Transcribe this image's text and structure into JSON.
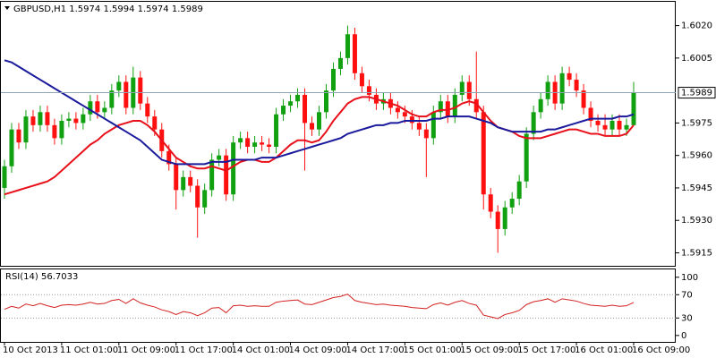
{
  "chart_data": [
    {
      "type": "candlestick",
      "title": "GBPUSD,H1",
      "categories": [
        "10 Oct 2013",
        null,
        null,
        null,
        null,
        null,
        null,
        null,
        "11 Oct 01:00",
        null,
        null,
        null,
        null,
        null,
        null,
        null,
        "11 Oct 09:00",
        null,
        null,
        null,
        null,
        null,
        null,
        null,
        "11 Oct 17:00",
        null,
        null,
        null,
        null,
        null,
        null,
        null,
        "14 Oct 01:00",
        null,
        null,
        null,
        null,
        null,
        null,
        null,
        "14 Oct 09:00",
        null,
        null,
        null,
        null,
        null,
        null,
        null,
        "14 Oct 17:00",
        null,
        null,
        null,
        null,
        null,
        null,
        null,
        "15 Oct 01:00",
        null,
        null,
        null,
        null,
        null,
        null,
        null,
        "15 Oct 09:00",
        null,
        null,
        null,
        null,
        null,
        null,
        null,
        "15 Oct 17:00",
        null,
        null,
        null,
        null,
        null,
        null,
        null,
        "16 Oct 01:00",
        null,
        null,
        null,
        null,
        null,
        null,
        null,
        "16 Oct 09:00"
      ],
      "open": [
        1.5945,
        1.5955,
        1.5972,
        1.5966,
        1.5978,
        1.5974,
        1.598,
        1.5974,
        1.5968,
        1.5976,
        1.5977,
        1.5975,
        1.5979,
        1.5985,
        1.598,
        1.5982,
        1.599,
        1.5994,
        1.5982,
        1.5996,
        1.5984,
        1.5978,
        1.5972,
        1.5962,
        1.5956,
        1.5944,
        1.595,
        1.5946,
        1.5936,
        1.5944,
        1.5958,
        1.596,
        1.5942,
        1.5966,
        1.5968,
        1.5964,
        1.5966,
        1.5965,
        1.5964,
        1.5979,
        1.5983,
        1.5985,
        1.5988,
        1.5975,
        1.5972,
        1.598,
        1.599,
        1.6,
        1.6005,
        1.6016,
        1.5998,
        1.5992,
        1.5988,
        1.5984,
        1.5986,
        1.5982,
        1.598,
        1.5978,
        1.5975,
        1.5972,
        1.5968,
        1.598,
        1.5985,
        1.5978,
        1.5988,
        1.5994,
        1.5986,
        1.598,
        1.5942,
        1.5934,
        1.5926,
        1.5936,
        1.594,
        1.5948,
        1.597,
        1.598,
        1.5986,
        1.5994,
        1.5984,
        1.5998,
        1.5995,
        1.599,
        1.5982,
        1.5976,
        1.5974,
        1.5972,
        1.5976,
        1.5972,
        1.5974
      ],
      "high": [
        1.5958,
        1.5975,
        1.5975,
        1.5981,
        1.5981,
        1.5983,
        1.5983,
        1.5977,
        1.5979,
        1.598,
        1.598,
        1.5982,
        1.5988,
        1.5988,
        1.5985,
        1.5993,
        1.5997,
        1.5997,
        1.6001,
        1.5999,
        1.5987,
        1.5981,
        1.5975,
        1.5965,
        1.5959,
        1.5953,
        1.5953,
        1.5949,
        1.5947,
        1.5961,
        1.5963,
        1.5963,
        1.5969,
        1.5971,
        1.5971,
        1.5969,
        1.5969,
        1.5968,
        1.5982,
        1.5986,
        1.5988,
        1.5991,
        1.5991,
        1.5978,
        1.5983,
        1.5993,
        1.6003,
        1.6008,
        1.602,
        1.6019,
        1.6001,
        1.5995,
        1.5991,
        1.5989,
        1.5989,
        1.5985,
        1.5983,
        1.5981,
        1.5978,
        1.5975,
        1.5983,
        1.5988,
        1.5988,
        1.5991,
        1.5997,
        1.5997,
        1.6008,
        1.5983,
        1.5945,
        1.5937,
        1.5939,
        1.5943,
        1.5951,
        1.5973,
        1.5983,
        1.5989,
        1.5997,
        1.5997,
        1.6001,
        1.6001,
        1.5998,
        1.5993,
        1.5985,
        1.5979,
        1.5979,
        1.5979,
        1.5979,
        1.5977,
        1.5994
      ],
      "low": [
        1.594,
        1.5952,
        1.5963,
        1.5963,
        1.5971,
        1.5971,
        1.5971,
        1.5965,
        1.5965,
        1.5973,
        1.5972,
        1.5972,
        1.5976,
        1.5977,
        1.5977,
        1.5979,
        1.5987,
        1.5979,
        1.5979,
        1.5981,
        1.5975,
        1.5969,
        1.5959,
        1.5953,
        1.5935,
        1.5941,
        1.5943,
        1.5922,
        1.5933,
        1.5941,
        1.5955,
        1.5939,
        1.5939,
        1.5963,
        1.5961,
        1.5961,
        1.5962,
        1.5961,
        1.5961,
        1.5976,
        1.598,
        1.5982,
        1.5953,
        1.5969,
        1.5969,
        1.5977,
        1.5987,
        1.5997,
        1.6002,
        1.5995,
        1.5989,
        1.5985,
        1.5981,
        1.5981,
        1.5979,
        1.5977,
        1.5975,
        1.5972,
        1.5969,
        1.595,
        1.5965,
        1.5977,
        1.5975,
        1.5975,
        1.5985,
        1.5983,
        1.5977,
        1.5935,
        1.5931,
        1.5915,
        1.5923,
        1.5933,
        1.5937,
        1.5945,
        1.5967,
        1.5977,
        1.5983,
        1.5981,
        1.5981,
        1.5992,
        1.5987,
        1.5979,
        1.5973,
        1.5971,
        1.5969,
        1.5969,
        1.5969,
        1.5969,
        1.5974
      ],
      "close": [
        1.5955,
        1.5972,
        1.5966,
        1.5978,
        1.5974,
        1.598,
        1.5974,
        1.5968,
        1.5976,
        1.5977,
        1.5975,
        1.5979,
        1.5985,
        1.598,
        1.5982,
        1.599,
        1.5994,
        1.5982,
        1.5996,
        1.5984,
        1.5978,
        1.5972,
        1.5962,
        1.5956,
        1.5944,
        1.595,
        1.5946,
        1.5936,
        1.5944,
        1.5958,
        1.596,
        1.5942,
        1.5966,
        1.5968,
        1.5964,
        1.5966,
        1.5965,
        1.5964,
        1.5979,
        1.5983,
        1.5985,
        1.5988,
        1.5975,
        1.5972,
        1.598,
        1.599,
        1.6,
        1.6005,
        1.6016,
        1.5998,
        1.5992,
        1.5988,
        1.5984,
        1.5986,
        1.5982,
        1.598,
        1.5978,
        1.5975,
        1.5972,
        1.5968,
        1.598,
        1.5985,
        1.5978,
        1.5988,
        1.5994,
        1.5986,
        1.598,
        1.5942,
        1.5934,
        1.5926,
        1.5936,
        1.594,
        1.5948,
        1.597,
        1.598,
        1.5986,
        1.5994,
        1.5984,
        1.5998,
        1.5995,
        1.599,
        1.5982,
        1.5976,
        1.5974,
        1.5972,
        1.5976,
        1.5972,
        1.5974,
        1.5989
      ],
      "up_color": "#10a010",
      "down_color": "#ff1010",
      "last_line_color": "#8fa5b5",
      "series": [
        {
          "color": "#e8101a",
          "values": [
            1.5942,
            1.5943,
            1.5944,
            1.5945,
            1.5946,
            1.5947,
            1.5948,
            1.595,
            1.5953,
            1.5956,
            1.5959,
            1.5962,
            1.5965,
            1.5967,
            1.597,
            1.5972,
            1.5974,
            1.5975,
            1.5976,
            1.5976,
            1.5974,
            1.5971,
            1.5967,
            1.5963,
            1.5959,
            1.5957,
            1.5955,
            1.5954,
            1.5954,
            1.5955,
            1.5954,
            1.5953,
            1.5955,
            1.5957,
            1.5958,
            1.5958,
            1.5957,
            1.5957,
            1.5959,
            1.5962,
            1.5965,
            1.5967,
            1.5967,
            1.5966,
            1.5967,
            1.5971,
            1.5976,
            1.598,
            1.5984,
            1.5986,
            1.5987,
            1.5987,
            1.5986,
            1.5985,
            1.5984,
            1.5983,
            1.5981,
            1.5979,
            1.5978,
            1.5978,
            1.598,
            1.5981,
            1.5981,
            1.5982,
            1.5984,
            1.5985,
            1.5984,
            1.598,
            1.5976,
            1.5973,
            1.5972,
            1.5971,
            1.5969,
            1.5968,
            1.5968,
            1.5968,
            1.5969,
            1.597,
            1.5971,
            1.5972,
            1.5972,
            1.5971,
            1.597,
            1.597,
            1.5969,
            1.5969,
            1.5969,
            1.597,
            1.5974
          ]
        },
        {
          "color": "#1a1a9c",
          "values": [
            1.6004,
            1.6003,
            1.6001,
            1.5999,
            1.5997,
            1.5995,
            1.5993,
            1.5991,
            1.5989,
            1.5987,
            1.5985,
            1.5983,
            1.5981,
            1.5979,
            1.5977,
            1.5975,
            1.5973,
            1.5971,
            1.5969,
            1.5967,
            1.5964,
            1.5961,
            1.5958,
            1.5957,
            1.5956,
            1.5956,
            1.5956,
            1.5956,
            1.5956,
            1.5957,
            1.5957,
            1.5957,
            1.5958,
            1.5958,
            1.5958,
            1.5958,
            1.5959,
            1.5959,
            1.5959,
            1.596,
            1.5961,
            1.5962,
            1.5963,
            1.5964,
            1.5965,
            1.5966,
            1.5967,
            1.5968,
            1.597,
            1.5971,
            1.5972,
            1.5973,
            1.5974,
            1.5974,
            1.5975,
            1.5975,
            1.5976,
            1.5976,
            1.5976,
            1.5976,
            1.5977,
            1.5977,
            1.5978,
            1.5978,
            1.5978,
            1.5978,
            1.5977,
            1.5976,
            1.5975,
            1.5973,
            1.5972,
            1.5971,
            1.5971,
            1.5971,
            1.5971,
            1.5971,
            1.5972,
            1.5972,
            1.5973,
            1.5974,
            1.5975,
            1.5976,
            1.5977,
            1.5977,
            1.5977,
            1.5977,
            1.5978,
            1.5978,
            1.5979
          ]
        }
      ],
      "ylim": [
        1.5909,
        1.6031
      ],
      "yticks": [
        {
          "value": 1.602,
          "label": "1.6020"
        },
        1.6005,
        1.5975,
        {
          "value": 1.596,
          "label": "1.5960"
        },
        1.5945,
        {
          "value": 1.593,
          "label": "1.5930"
        },
        1.5915
      ]
    },
    {
      "type": "line",
      "title": "RSI(14)",
      "series": [
        {
          "color": "#d42020",
          "values": [
            45,
            50,
            47,
            54,
            51,
            55,
            51,
            48,
            52,
            53,
            52,
            54,
            57,
            54,
            55,
            60,
            62,
            55,
            63,
            56,
            52,
            49,
            44,
            41,
            36,
            41,
            39,
            34,
            39,
            47,
            48,
            39,
            51,
            52,
            50,
            51,
            50,
            50,
            57,
            59,
            60,
            61,
            54,
            53,
            57,
            61,
            65,
            67,
            71,
            60,
            57,
            55,
            53,
            54,
            52,
            51,
            50,
            48,
            47,
            46,
            53,
            56,
            52,
            57,
            60,
            55,
            52,
            35,
            32,
            29,
            36,
            39,
            43,
            53,
            58,
            60,
            63,
            57,
            63,
            61,
            59,
            55,
            52,
            51,
            50,
            52,
            50,
            51,
            56.7033
          ]
        }
      ],
      "ylim": [
        -11,
        115
      ],
      "yticks": [
        100,
        70,
        30,
        0
      ],
      "levels": [
        70,
        30
      ]
    }
  ]
}
